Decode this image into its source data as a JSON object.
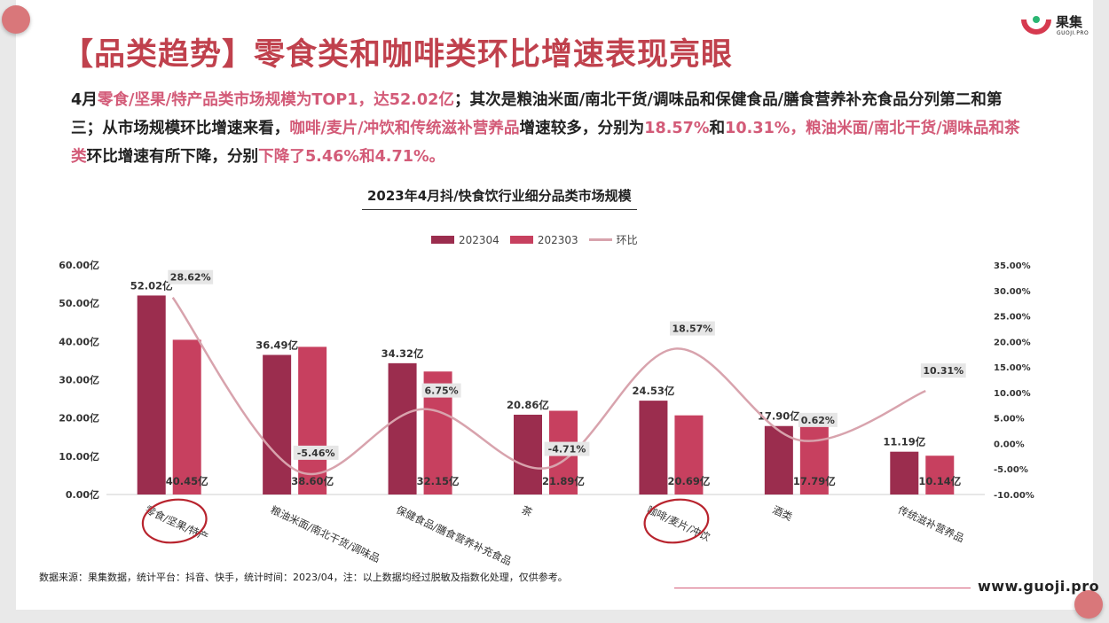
{
  "header": {
    "title": "【品类趋势】零食类和咖啡类环比增速表现亮眼",
    "logo_name": "果集",
    "logo_sub": "GUOJI.PRO"
  },
  "summary": {
    "p1": "4月",
    "p2": "零食/坚果/特产品类市场规模为TOP1，达52.02亿",
    "p3": "；其次是粮油米面/南北干货/调味品和保健食品/膳食营养补充食品分列第二和第三；从市场规模环比增速来看，",
    "p4": "咖啡/麦片/冲饮和传统滋补营养品",
    "p5": "增速较多，分别为",
    "p6": "18.57%",
    "p7": "和",
    "p8": "10.31%，粮油米面/南北干货/调味品和茶类",
    "p9": "环比增速有所下降，分别",
    "p10": "下降了5.46%和4.71%。"
  },
  "chart_data": {
    "type": "bar",
    "title": "2023年4月抖/快食饮行业细分品类市场规模",
    "categories": [
      "零食/坚果/特产",
      "粮油米面/南北干货/调味品",
      "保健食品/膳食营养补充食品",
      "茶",
      "咖啡/麦片/冲饮",
      "酒类",
      "传统滋补营养品"
    ],
    "series": [
      {
        "name": "202304",
        "type": "bar",
        "values": [
          52.02,
          36.49,
          34.32,
          20.86,
          24.53,
          17.9,
          11.19
        ],
        "labels": [
          "52.02亿",
          "36.49亿",
          "34.32亿",
          "20.86亿",
          "24.53亿",
          "17.90亿",
          "11.19亿"
        ],
        "color": "#9b2d4e"
      },
      {
        "name": "202303",
        "type": "bar",
        "values": [
          40.45,
          38.6,
          32.15,
          21.89,
          20.69,
          17.79,
          10.14
        ],
        "labels": [
          "40.45亿",
          "38.60亿",
          "32.15亿",
          "21.89亿",
          "20.69亿",
          "17.79亿",
          "10.14亿"
        ],
        "color": "#c7405f"
      },
      {
        "name": "环比",
        "type": "line",
        "axis": "right",
        "values": [
          28.62,
          -5.46,
          6.75,
          -4.71,
          18.57,
          0.62,
          10.31
        ],
        "labels": [
          "28.62%",
          "-5.46%",
          "6.75%",
          "-4.71%",
          "18.57%",
          "0.62%",
          "10.31%"
        ],
        "color": "#d8a3ad"
      }
    ],
    "y_left": {
      "min": 0,
      "max": 60,
      "step": 10,
      "ticks": [
        "0.00亿",
        "10.00亿",
        "20.00亿",
        "30.00亿",
        "40.00亿",
        "50.00亿",
        "60.00亿"
      ]
    },
    "y_right": {
      "min": -10,
      "max": 35,
      "step": 5,
      "ticks": [
        "-10.00%",
        "-5.00%",
        "0.00%",
        "5.00%",
        "10.00%",
        "15.00%",
        "20.00%",
        "25.00%",
        "30.00%",
        "35.00%"
      ]
    },
    "grid": false,
    "legend": "top-center",
    "highlighted_categories": [
      0,
      4
    ]
  },
  "footer": {
    "source": "数据来源：果集数据，统计平台：抖音、快手，统计时间：2023/04，注：以上数据均经过脱敏及指数化处理，仅供参考。",
    "site": "www.guoji.pro"
  },
  "colors": {
    "accent": "#c0414d",
    "highlight": "#d35b78",
    "bar_2023_04": "#9b2d4e",
    "bar_2023_03": "#c7405f",
    "line": "#d8a3ad"
  }
}
